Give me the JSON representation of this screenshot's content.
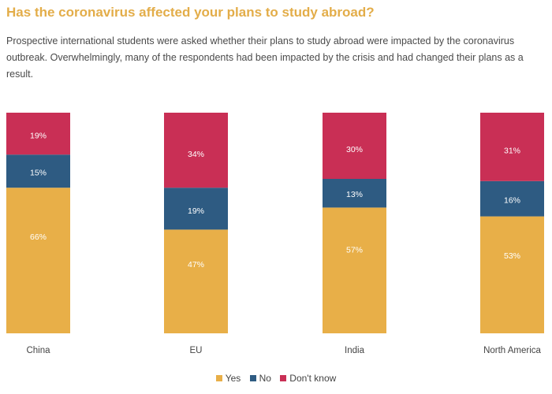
{
  "header": {
    "title": "Has the coronavirus affected your plans to study abroad?",
    "description": "Prospective international students were asked whether their plans to study abroad were impacted by the coronavirus outbreak. Overwhelmingly, many of the respondents had been impacted by the crisis and had changed their plans as a result."
  },
  "colors": {
    "yes": "#E8AF48",
    "no": "#2E5B82",
    "dont_know": "#C92F55"
  },
  "chart_data": {
    "type": "bar",
    "stacked": true,
    "categories": [
      "China",
      "EU",
      "India",
      "North America"
    ],
    "series": [
      {
        "name": "Yes",
        "values": [
          66,
          47,
          57,
          53
        ],
        "labels": [
          "66%",
          "47%",
          "57%",
          "53%"
        ]
      },
      {
        "name": "No",
        "values": [
          15,
          19,
          13,
          16
        ],
        "labels": [
          "15%",
          "19%",
          "13%",
          "16%"
        ]
      },
      {
        "name": "Don't know",
        "values": [
          19,
          34,
          30,
          31
        ],
        "labels": [
          "19%",
          "34%",
          "30%",
          "31%"
        ]
      }
    ],
    "ylim": [
      0,
      100
    ],
    "grid": false,
    "legend": "bottom"
  }
}
